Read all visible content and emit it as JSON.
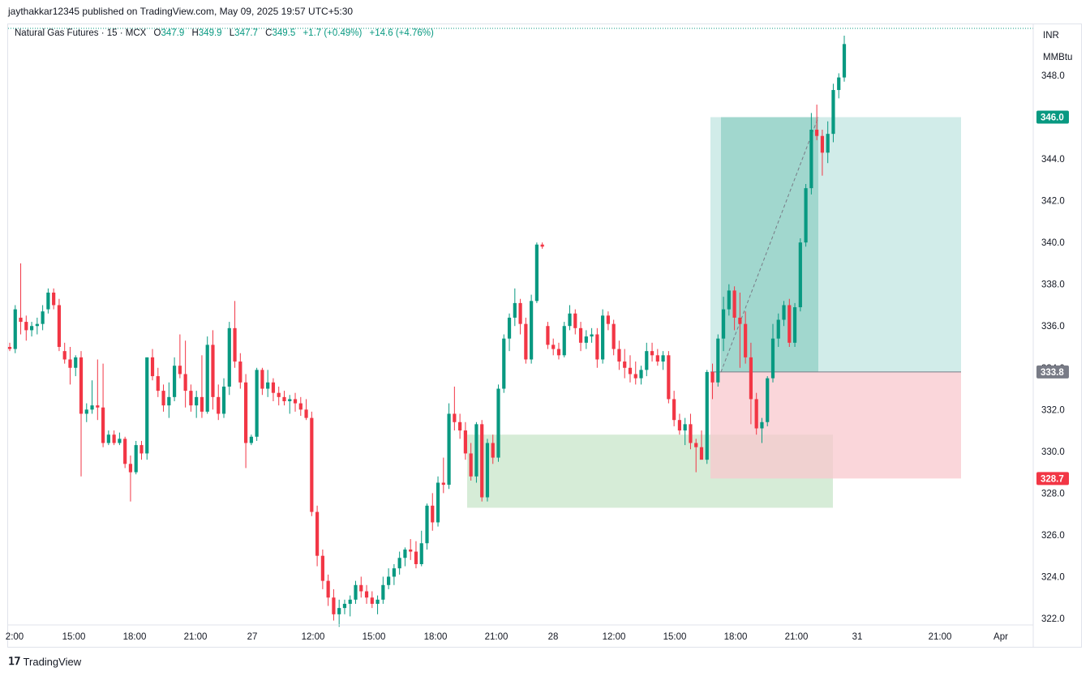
{
  "header": {
    "publisher": "jaythakkar12345 published on TradingView.com, May 09, 2025 19:57 UTC+5:30"
  },
  "legend": {
    "symbol": "Natural Gas Futures · 15 · MCX",
    "open_label": "O",
    "open": "347.9",
    "high_label": "H",
    "high": "349.9",
    "low_label": "L",
    "low": "347.7",
    "close_label": "C",
    "close": "349.5",
    "change": "+1.7 (+0.49%)",
    "change2": "+14.6 (+4.76%)"
  },
  "price_axis": {
    "currency": "INR",
    "unit": "MMBtu",
    "ticks": [
      "348.0",
      "346.0",
      "344.0",
      "342.0",
      "340.0",
      "338.0",
      "336.0",
      "334.0",
      "332.0",
      "330.0",
      "328.0",
      "326.0",
      "324.0",
      "322.0"
    ]
  },
  "price_tags": [
    {
      "value": "346.0",
      "color": "#089981"
    },
    {
      "value": "333.8",
      "color": "#787b86"
    },
    {
      "value": "328.7",
      "color": "#f23645"
    }
  ],
  "time_axis": [
    "2:00",
    "15:00",
    "18:00",
    "21:00",
    "27",
    "12:00",
    "15:00",
    "18:00",
    "21:00",
    "28",
    "12:00",
    "15:00",
    "18:00",
    "21:00",
    "31",
    "21:00",
    "Apr"
  ],
  "footer": {
    "brand": "TradingView"
  },
  "colors": {
    "up": "#089981",
    "down": "#f23645",
    "target_zone": "#b2dfdb",
    "stop_zone": "#f8c8cd",
    "demand_zone": "#c8e6c9"
  },
  "chart_data": {
    "type": "candlestick",
    "title": "Natural Gas Futures · 15 · MCX",
    "ylim": [
      321.5,
      351
    ],
    "current_price": 349.5,
    "position": {
      "type": "long",
      "entry": 333.8,
      "target": 346.0,
      "stop": 328.7
    },
    "demand_zone": {
      "top": 330.8,
      "bottom": 327.3
    },
    "candles": [
      [
        335.0,
        335.2,
        334.8,
        334.9
      ],
      [
        334.9,
        337.0,
        334.7,
        336.8
      ],
      [
        336.4,
        339.0,
        335.6,
        336.2
      ],
      [
        336.2,
        336.5,
        335.3,
        335.8
      ],
      [
        335.8,
        336.2,
        335.5,
        336.0
      ],
      [
        336.0,
        336.4,
        335.6,
        336.1
      ],
      [
        336.1,
        337.0,
        335.8,
        336.7
      ],
      [
        336.8,
        337.8,
        336.6,
        337.6
      ],
      [
        337.6,
        337.8,
        336.8,
        337.0
      ],
      [
        337.0,
        337.3,
        334.8,
        335.0
      ],
      [
        334.8,
        335.2,
        334.2,
        334.4
      ],
      [
        334.4,
        335.0,
        333.2,
        334.0
      ],
      [
        334.0,
        334.6,
        333.6,
        334.5
      ],
      [
        334.5,
        334.8,
        328.8,
        331.8
      ],
      [
        331.8,
        332.3,
        331.4,
        332.0
      ],
      [
        332.0,
        333.4,
        331.8,
        332.2
      ],
      [
        332.2,
        334.4,
        331.5,
        332.1
      ],
      [
        332.1,
        334.2,
        330.2,
        330.4
      ],
      [
        330.4,
        331.0,
        330.3,
        330.8
      ],
      [
        330.8,
        331.0,
        330.3,
        330.4
      ],
      [
        330.4,
        330.9,
        330.3,
        330.6
      ],
      [
        330.6,
        330.7,
        329.2,
        329.4
      ],
      [
        329.4,
        329.8,
        327.6,
        329.0
      ],
      [
        329.0,
        330.5,
        328.9,
        330.3
      ],
      [
        330.3,
        330.5,
        329.6,
        329.9
      ],
      [
        329.9,
        334.5,
        329.6,
        334.5
      ],
      [
        334.5,
        334.9,
        333.4,
        333.6
      ],
      [
        333.6,
        334.0,
        332.6,
        332.9
      ],
      [
        332.9,
        333.2,
        331.9,
        332.2
      ],
      [
        332.2,
        333.3,
        331.6,
        332.6
      ],
      [
        332.6,
        334.5,
        332.4,
        334.1
      ],
      [
        334.1,
        335.6,
        333.5,
        333.7
      ],
      [
        333.7,
        335.3,
        332.1,
        332.9
      ],
      [
        332.9,
        333.2,
        331.9,
        332.2
      ],
      [
        332.2,
        332.9,
        331.6,
        332.6
      ],
      [
        332.6,
        334.6,
        331.6,
        331.9
      ],
      [
        331.9,
        335.5,
        331.8,
        335.1
      ],
      [
        335.1,
        335.8,
        332.0,
        332.6
      ],
      [
        332.6,
        333.2,
        331.5,
        331.8
      ],
      [
        331.8,
        333.5,
        331.6,
        333.1
      ],
      [
        333.1,
        336.2,
        332.7,
        335.9
      ],
      [
        335.9,
        337.2,
        334.0,
        334.3
      ],
      [
        334.3,
        334.7,
        333.0,
        333.3
      ],
      [
        333.3,
        333.7,
        329.2,
        330.4
      ],
      [
        330.4,
        330.8,
        330.3,
        330.7
      ],
      [
        330.7,
        334.0,
        330.5,
        333.9
      ],
      [
        333.9,
        334.0,
        332.7,
        333.0
      ],
      [
        333.0,
        333.9,
        332.6,
        333.3
      ],
      [
        333.3,
        333.5,
        332.4,
        332.8
      ],
      [
        332.8,
        333.1,
        332.2,
        332.6
      ],
      [
        332.6,
        332.9,
        332.2,
        332.4
      ],
      [
        332.4,
        332.7,
        331.8,
        332.5
      ],
      [
        332.5,
        332.8,
        331.9,
        332.3
      ],
      [
        332.3,
        332.6,
        331.7,
        332.0
      ],
      [
        332.0,
        332.5,
        331.5,
        331.6
      ],
      [
        331.6,
        331.9,
        326.9,
        327.1
      ],
      [
        327.1,
        327.4,
        324.5,
        325.0
      ],
      [
        325.0,
        325.3,
        323.4,
        323.8
      ],
      [
        323.8,
        324.1,
        322.6,
        323.0
      ],
      [
        323.0,
        323.4,
        321.9,
        322.2
      ],
      [
        322.2,
        322.9,
        321.6,
        322.5
      ],
      [
        322.5,
        322.9,
        322.2,
        322.7
      ],
      [
        322.7,
        323.1,
        322.1,
        322.9
      ],
      [
        322.9,
        323.8,
        322.7,
        323.6
      ],
      [
        323.6,
        324.0,
        323.0,
        323.3
      ],
      [
        323.3,
        323.6,
        322.7,
        323.0
      ],
      [
        323.0,
        323.3,
        322.5,
        322.7
      ],
      [
        322.7,
        323.1,
        322.2,
        322.9
      ],
      [
        322.9,
        324.0,
        322.7,
        323.6
      ],
      [
        323.6,
        324.4,
        323.4,
        324.0
      ],
      [
        324.0,
        324.6,
        323.6,
        324.4
      ],
      [
        324.4,
        325.2,
        324.1,
        324.9
      ],
      [
        324.9,
        325.4,
        324.5,
        325.3
      ],
      [
        325.3,
        325.8,
        324.8,
        325.2
      ],
      [
        325.2,
        325.7,
        324.4,
        324.6
      ],
      [
        324.6,
        326.2,
        324.5,
        325.6
      ],
      [
        325.6,
        327.5,
        325.3,
        327.4
      ],
      [
        327.4,
        328.0,
        326.2,
        326.6
      ],
      [
        326.6,
        328.8,
        326.4,
        328.5
      ],
      [
        328.5,
        329.7,
        328.0,
        328.4
      ],
      [
        328.4,
        332.3,
        328.2,
        331.8
      ],
      [
        331.8,
        333.1,
        331.0,
        331.4
      ],
      [
        331.4,
        331.8,
        330.6,
        331.0
      ],
      [
        331.0,
        331.4,
        329.6,
        329.9
      ],
      [
        329.9,
        330.4,
        328.6,
        328.8
      ],
      [
        328.8,
        331.4,
        328.5,
        331.3
      ],
      [
        331.3,
        331.5,
        327.6,
        327.8
      ],
      [
        327.8,
        330.6,
        327.6,
        330.4
      ],
      [
        330.4,
        330.8,
        329.4,
        329.7
      ],
      [
        329.7,
        333.2,
        329.5,
        333.0
      ],
      [
        333.0,
        335.6,
        332.8,
        335.4
      ],
      [
        335.4,
        336.6,
        334.8,
        336.4
      ],
      [
        336.4,
        337.8,
        336.0,
        337.1
      ],
      [
        337.1,
        337.3,
        335.6,
        336.1
      ],
      [
        336.1,
        336.4,
        334.2,
        334.4
      ],
      [
        334.4,
        337.5,
        334.2,
        337.2
      ],
      [
        337.2,
        340.0,
        337.1,
        339.9
      ],
      [
        339.9,
        340.0,
        339.7,
        339.8
      ],
      [
        336.0,
        336.2,
        334.9,
        335.1
      ],
      [
        335.1,
        335.4,
        334.6,
        334.9
      ],
      [
        334.9,
        335.2,
        334.4,
        334.6
      ],
      [
        334.6,
        336.2,
        334.5,
        336.0
      ],
      [
        336.0,
        337.0,
        335.8,
        336.6
      ],
      [
        336.6,
        336.8,
        335.6,
        335.9
      ],
      [
        335.9,
        336.2,
        334.8,
        335.2
      ],
      [
        335.2,
        335.8,
        334.9,
        335.5
      ],
      [
        335.5,
        335.9,
        335.2,
        335.6
      ],
      [
        335.6,
        335.9,
        334.0,
        334.4
      ],
      [
        334.4,
        336.8,
        334.2,
        336.5
      ],
      [
        336.5,
        336.7,
        335.8,
        336.1
      ],
      [
        336.1,
        336.3,
        334.6,
        334.9
      ],
      [
        334.9,
        335.3,
        333.9,
        334.3
      ],
      [
        334.3,
        334.9,
        333.5,
        334.0
      ],
      [
        334.0,
        334.6,
        333.3,
        333.7
      ],
      [
        333.7,
        334.3,
        333.2,
        333.5
      ],
      [
        333.5,
        334.1,
        333.2,
        333.9
      ],
      [
        333.9,
        335.2,
        333.6,
        334.8
      ],
      [
        334.8,
        335.2,
        334.3,
        334.6
      ],
      [
        334.6,
        334.9,
        334.1,
        334.3
      ],
      [
        334.3,
        334.8,
        333.9,
        334.6
      ],
      [
        334.6,
        334.8,
        332.3,
        332.5
      ],
      [
        332.5,
        332.9,
        331.2,
        331.5
      ],
      [
        331.5,
        331.8,
        330.8,
        331.0
      ],
      [
        331.0,
        331.6,
        330.3,
        331.3
      ],
      [
        331.3,
        331.8,
        330.1,
        330.4
      ],
      [
        330.4,
        330.6,
        329.0,
        330.2
      ],
      [
        330.2,
        331.0,
        329.7,
        329.6
      ],
      [
        329.6,
        333.9,
        329.4,
        333.8
      ],
      [
        333.8,
        334.2,
        332.5,
        333.3
      ],
      [
        333.3,
        335.6,
        333.1,
        335.4
      ],
      [
        335.4,
        337.4,
        334.8,
        336.8
      ],
      [
        336.8,
        338.0,
        336.5,
        337.7
      ],
      [
        337.7,
        337.9,
        335.8,
        336.4
      ],
      [
        336.4,
        337.6,
        334.0,
        336.1
      ],
      [
        336.1,
        336.7,
        334.2,
        334.5
      ],
      [
        334.5,
        335.2,
        331.3,
        332.5
      ],
      [
        332.5,
        332.8,
        330.8,
        331.1
      ],
      [
        331.1,
        331.6,
        330.4,
        331.4
      ],
      [
        331.4,
        333.6,
        331.2,
        333.5
      ],
      [
        333.5,
        336.1,
        333.3,
        335.4
      ],
      [
        335.4,
        336.6,
        335.0,
        336.3
      ],
      [
        336.3,
        337.2,
        336.0,
        337.0
      ],
      [
        337.0,
        337.3,
        335.0,
        335.2
      ],
      [
        335.2,
        337.1,
        335.0,
        336.9
      ],
      [
        336.9,
        340.2,
        336.7,
        340.0
      ],
      [
        340.0,
        342.8,
        339.8,
        342.6
      ],
      [
        342.6,
        346.2,
        342.3,
        345.4
      ],
      [
        345.4,
        346.6,
        344.9,
        345.1
      ],
      [
        345.1,
        345.4,
        343.2,
        344.3
      ],
      [
        344.3,
        345.8,
        343.8,
        345.2
      ],
      [
        345.2,
        347.6,
        344.8,
        347.3
      ],
      [
        347.3,
        348.1,
        346.9,
        347.9
      ],
      [
        347.9,
        349.9,
        347.7,
        349.5
      ]
    ]
  }
}
